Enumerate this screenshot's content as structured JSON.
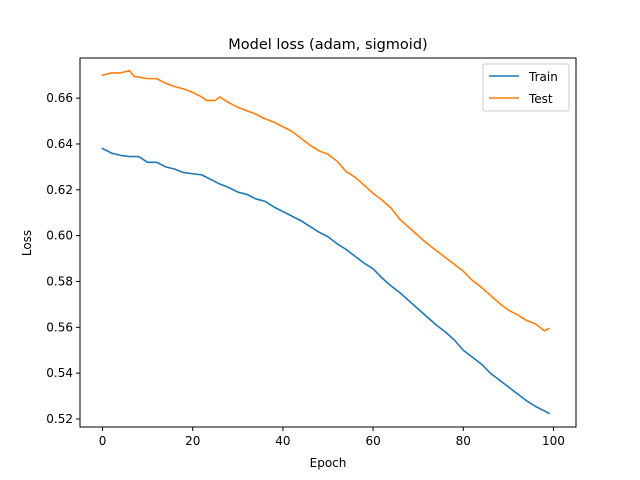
{
  "chart_data": {
    "type": "line",
    "title": "Model loss (adam, sigmoid)",
    "xlabel": "Epoch",
    "ylabel": "Loss",
    "xlim": [
      -5,
      105
    ],
    "ylim": [
      0.5165,
      0.6775
    ],
    "xticks": [
      0,
      20,
      40,
      60,
      80,
      100
    ],
    "yticks": [
      0.52,
      0.54,
      0.56,
      0.58,
      0.6,
      0.62,
      0.64,
      0.66
    ],
    "grid": false,
    "legend": "top-right",
    "series": [
      {
        "name": "Train",
        "color": "#1f77b4",
        "points": [
          [
            0,
            0.638
          ],
          [
            2,
            0.636
          ],
          [
            4,
            0.635
          ],
          [
            6,
            0.6345
          ],
          [
            8,
            0.6345
          ],
          [
            10,
            0.632
          ],
          [
            12,
            0.632
          ],
          [
            14,
            0.63
          ],
          [
            16,
            0.629
          ],
          [
            18,
            0.6275
          ],
          [
            20,
            0.627
          ],
          [
            22,
            0.6265
          ],
          [
            24,
            0.6245
          ],
          [
            26,
            0.6225
          ],
          [
            28,
            0.621
          ],
          [
            30,
            0.619
          ],
          [
            32,
            0.618
          ],
          [
            34,
            0.616
          ],
          [
            36,
            0.615
          ],
          [
            38,
            0.6125
          ],
          [
            40,
            0.6105
          ],
          [
            42,
            0.6085
          ],
          [
            44,
            0.6065
          ],
          [
            46,
            0.604
          ],
          [
            48,
            0.6015
          ],
          [
            50,
            0.5995
          ],
          [
            52,
            0.5965
          ],
          [
            54,
            0.594
          ],
          [
            56,
            0.591
          ],
          [
            58,
            0.588
          ],
          [
            60,
            0.5855
          ],
          [
            62,
            0.5815
          ],
          [
            64,
            0.578
          ],
          [
            66,
            0.575
          ],
          [
            68,
            0.5715
          ],
          [
            70,
            0.568
          ],
          [
            72,
            0.5645
          ],
          [
            74,
            0.561
          ],
          [
            76,
            0.558
          ],
          [
            78,
            0.5545
          ],
          [
            80,
            0.55
          ],
          [
            82,
            0.547
          ],
          [
            84,
            0.544
          ],
          [
            86,
            0.54
          ],
          [
            88,
            0.537
          ],
          [
            90,
            0.534
          ],
          [
            92,
            0.531
          ],
          [
            94,
            0.528
          ],
          [
            96,
            0.5255
          ],
          [
            98,
            0.5235
          ],
          [
            99,
            0.5225
          ]
        ]
      },
      {
        "name": "Test",
        "color": "#ff7f0e",
        "points": [
          [
            0,
            0.67
          ],
          [
            2,
            0.671
          ],
          [
            4,
            0.671
          ],
          [
            6,
            0.672
          ],
          [
            7,
            0.6695
          ],
          [
            10,
            0.6685
          ],
          [
            12,
            0.6685
          ],
          [
            14,
            0.6665
          ],
          [
            16,
            0.665
          ],
          [
            18,
            0.664
          ],
          [
            20,
            0.6625
          ],
          [
            22,
            0.6605
          ],
          [
            23,
            0.659
          ],
          [
            25,
            0.659
          ],
          [
            26,
            0.6605
          ],
          [
            28,
            0.658
          ],
          [
            30,
            0.656
          ],
          [
            32,
            0.6545
          ],
          [
            34,
            0.653
          ],
          [
            36,
            0.651
          ],
          [
            38,
            0.6495
          ],
          [
            40,
            0.6475
          ],
          [
            42,
            0.6455
          ],
          [
            44,
            0.6425
          ],
          [
            46,
            0.6395
          ],
          [
            48,
            0.637
          ],
          [
            50,
            0.6355
          ],
          [
            52,
            0.6325
          ],
          [
            54,
            0.628
          ],
          [
            56,
            0.6255
          ],
          [
            58,
            0.622
          ],
          [
            60,
            0.6185
          ],
          [
            62,
            0.6155
          ],
          [
            64,
            0.612
          ],
          [
            66,
            0.607
          ],
          [
            68,
            0.6035
          ],
          [
            70,
            0.6
          ],
          [
            72,
            0.5965
          ],
          [
            74,
            0.5935
          ],
          [
            76,
            0.5905
          ],
          [
            78,
            0.5875
          ],
          [
            80,
            0.5845
          ],
          [
            82,
            0.5805
          ],
          [
            84,
            0.5775
          ],
          [
            86,
            0.574
          ],
          [
            88,
            0.5705
          ],
          [
            90,
            0.5675
          ],
          [
            92,
            0.5655
          ],
          [
            94,
            0.563
          ],
          [
            96,
            0.5615
          ],
          [
            98,
            0.5585
          ],
          [
            99,
            0.5595
          ]
        ]
      }
    ]
  }
}
